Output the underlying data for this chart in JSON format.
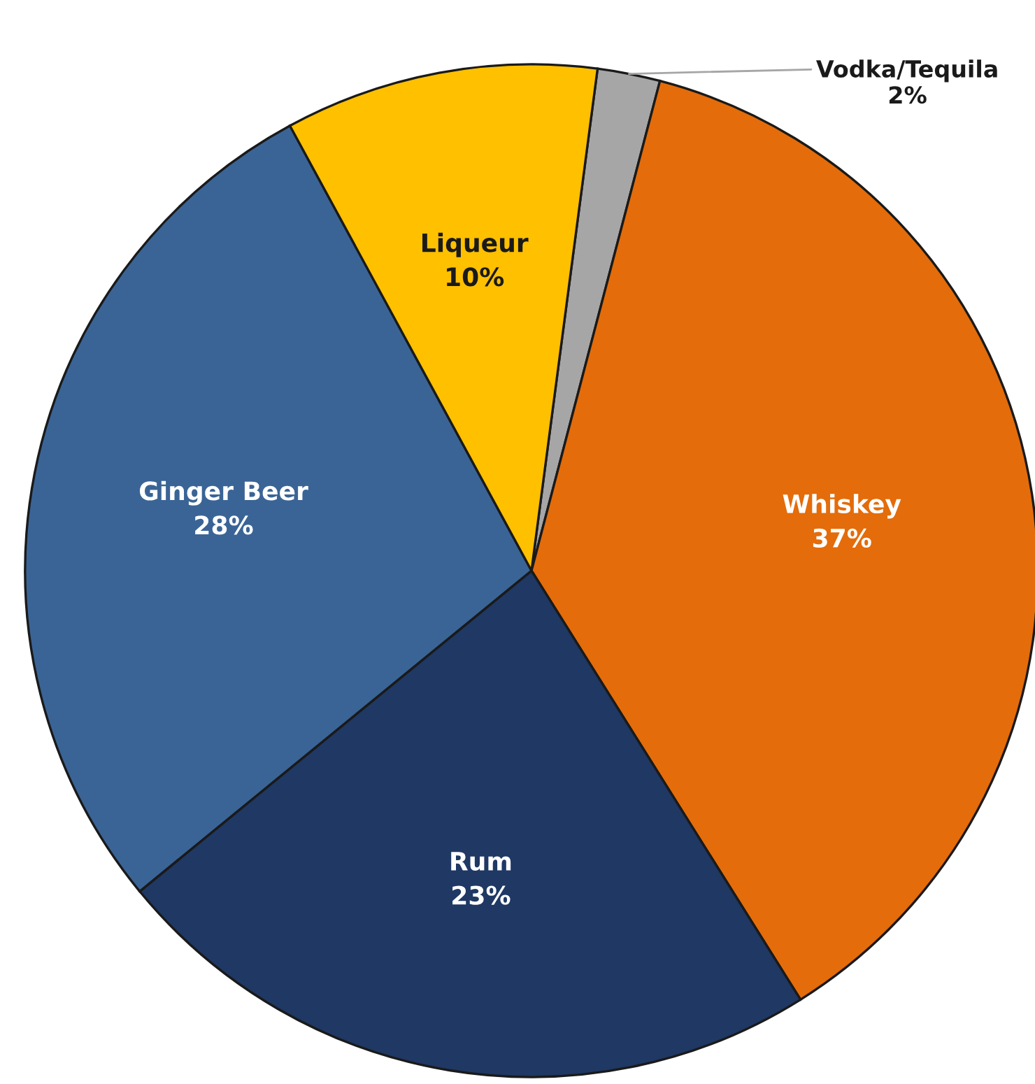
{
  "chart_data": {
    "type": "pie",
    "categories": [
      "Vodka/Tequila",
      "Whiskey",
      "Rum",
      "Ginger Beer",
      "Liqueur"
    ],
    "values": [
      2,
      37,
      23,
      28,
      10
    ],
    "value_labels": [
      "2%",
      "37%",
      "23%",
      "28%",
      "10%"
    ],
    "colors": [
      "#a6a6a6",
      "#e46c0a",
      "#1f3864",
      "#3a6496",
      "#ffc000"
    ],
    "legend": false
  }
}
